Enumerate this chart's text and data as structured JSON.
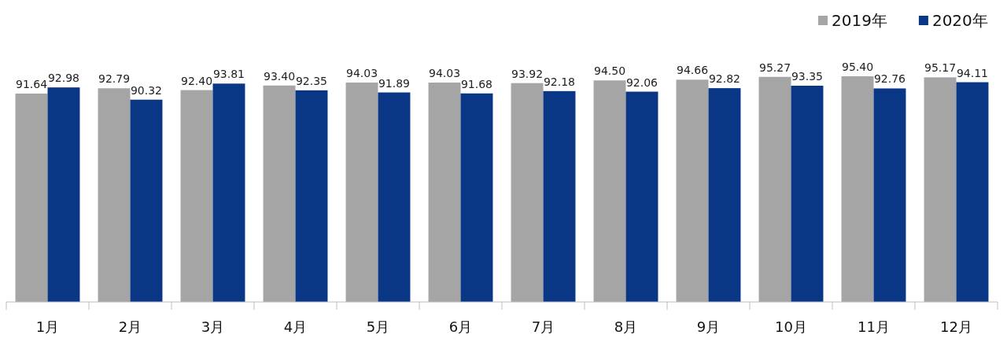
{
  "chart_data": {
    "type": "bar",
    "categories": [
      "1月",
      "2月",
      "3月",
      "4月",
      "5月",
      "6月",
      "7月",
      "8月",
      "9月",
      "10月",
      "11月",
      "12月"
    ],
    "series": [
      {
        "name": "2019年",
        "color": "#a5a5a5",
        "values": [
          91.64,
          92.79,
          92.4,
          93.4,
          94.03,
          94.03,
          93.92,
          94.5,
          94.66,
          95.27,
          95.4,
          95.17
        ],
        "value_labels": [
          "91.64",
          "92.79",
          "92.40",
          "93.40",
          "94.03",
          "94.03",
          "93.92",
          "94.50",
          "94.66",
          "95.27",
          "95.40",
          "95.17"
        ]
      },
      {
        "name": "2020年",
        "color": "#0a3686",
        "values": [
          92.98,
          90.32,
          93.81,
          92.35,
          91.89,
          91.68,
          92.18,
          92.06,
          92.82,
          93.35,
          92.76,
          94.11
        ],
        "value_labels": [
          "92.98",
          "90.32",
          "93.81",
          "92.35",
          "91.89",
          "91.68",
          "92.18",
          "92.06",
          "92.82",
          "93.35",
          "92.76",
          "94.11"
        ]
      }
    ],
    "ylim": [
      46.4,
      95.4
    ],
    "legend": "top right"
  }
}
